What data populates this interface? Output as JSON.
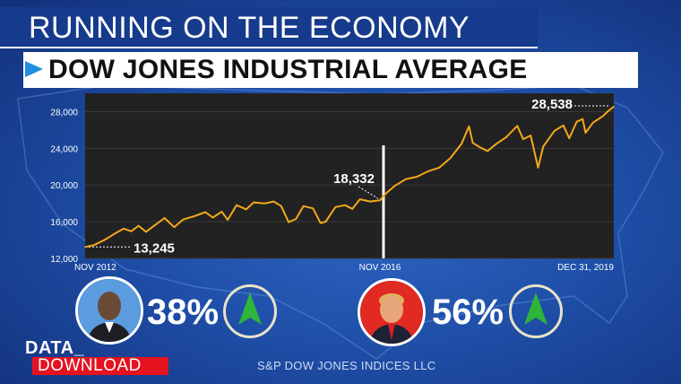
{
  "header": {
    "show_title": "RUNNING ON THE ECONOMY",
    "chart_title": "DOW JONES INDUSTRIAL AVERAGE"
  },
  "chart_data": {
    "type": "line",
    "title": "DOW JONES INDUSTRIAL AVERAGE",
    "xlabel": "",
    "ylabel": "",
    "ylim": [
      12000,
      30000
    ],
    "yticks": [
      12000,
      16000,
      20000,
      24000,
      28000
    ],
    "ytick_labels": [
      "12,000",
      "16,000",
      "20,000",
      "24,000",
      "28,000"
    ],
    "xtick_labels": [
      "NOV 2012",
      "NOV 2016",
      "DEC 31, 2019"
    ],
    "grid": true,
    "line_color": "#f4a81a",
    "series": [
      {
        "values": [
          [
            2012.88,
            13245
          ],
          [
            2013.0,
            13450
          ],
          [
            2013.15,
            14050
          ],
          [
            2013.3,
            14800
          ],
          [
            2013.4,
            15250
          ],
          [
            2013.5,
            14950
          ],
          [
            2013.6,
            15550
          ],
          [
            2013.7,
            14900
          ],
          [
            2013.8,
            15500
          ],
          [
            2013.95,
            16400
          ],
          [
            2014.08,
            15400
          ],
          [
            2014.2,
            16250
          ],
          [
            2014.35,
            16600
          ],
          [
            2014.5,
            17050
          ],
          [
            2014.6,
            16450
          ],
          [
            2014.72,
            17100
          ],
          [
            2014.8,
            16200
          ],
          [
            2014.92,
            17800
          ],
          [
            2015.05,
            17350
          ],
          [
            2015.15,
            18100
          ],
          [
            2015.3,
            18000
          ],
          [
            2015.42,
            18200
          ],
          [
            2015.52,
            17700
          ],
          [
            2015.62,
            15950
          ],
          [
            2015.72,
            16300
          ],
          [
            2015.82,
            17700
          ],
          [
            2015.95,
            17450
          ],
          [
            2016.05,
            15850
          ],
          [
            2016.12,
            16000
          ],
          [
            2016.25,
            17600
          ],
          [
            2016.38,
            17800
          ],
          [
            2016.48,
            17400
          ],
          [
            2016.58,
            18450
          ],
          [
            2016.72,
            18200
          ],
          [
            2016.85,
            18332
          ],
          [
            2016.92,
            19000
          ],
          [
            2017.05,
            19900
          ],
          [
            2017.2,
            20650
          ],
          [
            2017.35,
            20900
          ],
          [
            2017.5,
            21500
          ],
          [
            2017.65,
            21900
          ],
          [
            2017.8,
            22950
          ],
          [
            2017.95,
            24500
          ],
          [
            2018.05,
            26400
          ],
          [
            2018.1,
            24600
          ],
          [
            2018.2,
            24100
          ],
          [
            2018.3,
            23700
          ],
          [
            2018.42,
            24500
          ],
          [
            2018.55,
            25200
          ],
          [
            2018.7,
            26450
          ],
          [
            2018.78,
            25000
          ],
          [
            2018.88,
            25400
          ],
          [
            2018.98,
            21900
          ],
          [
            2019.05,
            24200
          ],
          [
            2019.2,
            25900
          ],
          [
            2019.32,
            26500
          ],
          [
            2019.4,
            25100
          ],
          [
            2019.5,
            26900
          ],
          [
            2019.58,
            27200
          ],
          [
            2019.62,
            25700
          ],
          [
            2019.72,
            26800
          ],
          [
            2019.85,
            27500
          ],
          [
            2019.93,
            28100
          ],
          [
            2020.0,
            28538
          ]
        ]
      }
    ],
    "annotations": [
      {
        "label": "13,245",
        "x": 2012.88,
        "y": 13245
      },
      {
        "label": "18,332",
        "x": 2016.85,
        "y": 18332
      },
      {
        "label": "28,538",
        "x": 2020.0,
        "y": 28538
      }
    ],
    "marker_x": 2016.85
  },
  "approval": [
    {
      "percent": "38%",
      "trend_icon": "up-arrow-icon",
      "avatar_bg": "#5b9be0"
    },
    {
      "percent": "56%",
      "trend_icon": "up-arrow-icon",
      "avatar_bg": "#e02a22"
    }
  ],
  "branding": {
    "data_label": "DATA_",
    "download_label": "DOWNLOAD",
    "source": "S&P DOW JONES INDICES LLC"
  },
  "colors": {
    "background": "#1f4fa8",
    "accent_red": "#e4131f",
    "arrow_green": "#2fb53a",
    "line_orange": "#f4a81a"
  }
}
